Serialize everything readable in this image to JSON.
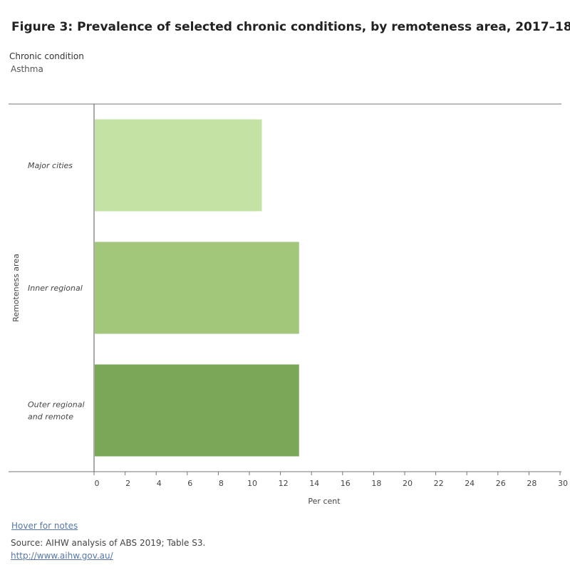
{
  "header": {
    "title": "Figure 3: Prevalence of selected chronic conditions, by remoteness area, 2017–18"
  },
  "filter": {
    "label": "Chronic condition",
    "value": "Asthma"
  },
  "footer": {
    "notes_link": "Hover for notes",
    "source": "Source:  AIHW analysis of ABS 2019; Table S3.",
    "url": "http://www.aihw.gov.au/"
  },
  "chart_data": {
    "type": "bar",
    "orientation": "horizontal",
    "categories": [
      [
        "Major cities"
      ],
      [
        "Inner regional"
      ],
      [
        "Outer regional",
        "and remote"
      ]
    ],
    "values": [
      10.8,
      13.2,
      13.2
    ],
    "colors": [
      "#c3e2a4",
      "#a2c77b",
      "#7ba858"
    ],
    "xlabel": "Per cent",
    "ylabel": "Remoteness area",
    "xlim": [
      0,
      30
    ],
    "xticks": [
      0,
      2,
      4,
      6,
      8,
      10,
      12,
      14,
      16,
      18,
      20,
      22,
      24,
      26,
      28,
      30
    ],
    "grid": false,
    "legend": "none"
  }
}
